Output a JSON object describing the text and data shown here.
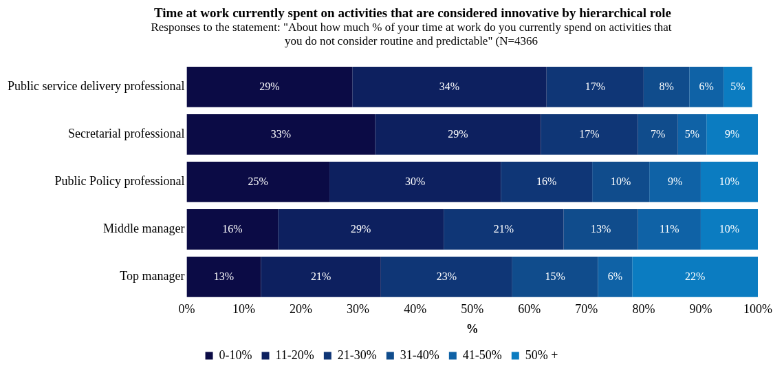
{
  "chart_data": {
    "type": "bar",
    "orientation": "horizontal",
    "stacked": true,
    "title": "Time at work currently spent on activities that are considered innovative by hierarchical role",
    "subtitle": "Responses to the statement: \"About how much % of your time at work do you currently spend on activities that you do not consider routine and predictable\" (N=4366",
    "xlabel": "%",
    "categories": [
      "Public service delivery professional",
      "Secretarial professional",
      "Public Policy professional",
      "Middle manager",
      "Top manager"
    ],
    "series": [
      {
        "name": "0-10%",
        "color": "#0b0b45",
        "values": [
          29,
          33,
          25,
          16,
          13
        ],
        "value_labels": [
          "29%",
          "33%",
          "25%",
          "16%",
          "13%"
        ]
      },
      {
        "name": "11-20%",
        "color": "#0d205f",
        "values": [
          34,
          29,
          30,
          29,
          21
        ],
        "value_labels": [
          "34%",
          "29%",
          "30%",
          "29%",
          "21%"
        ]
      },
      {
        "name": "21-30%",
        "color": "#0f3676",
        "values": [
          17,
          17,
          16,
          21,
          23
        ],
        "value_labels": [
          "17%",
          "17%",
          "16%",
          "21%",
          "23%"
        ]
      },
      {
        "name": "31-40%",
        "color": "#104c8c",
        "values": [
          8,
          7,
          10,
          13,
          15
        ],
        "value_labels": [
          "8%",
          "7%",
          "10%",
          "13%",
          "15%"
        ]
      },
      {
        "name": "41-50%",
        "color": "#0f62a6",
        "values": [
          6,
          5,
          9,
          11,
          6
        ],
        "value_labels": [
          "6%",
          "5%",
          "9%",
          "11%",
          "6%"
        ]
      },
      {
        "name": "50% +",
        "color": "#0b7cc1",
        "values": [
          5,
          9,
          10,
          10,
          22
        ],
        "value_labels": [
          "5%",
          "9%",
          "10%",
          "10%",
          "22%"
        ]
      }
    ],
    "xlim": [
      0,
      100
    ],
    "xticks": [
      {
        "value": 0,
        "label": "0%"
      },
      {
        "value": 10,
        "label": "10%"
      },
      {
        "value": 20,
        "label": "20%"
      },
      {
        "value": 30,
        "label": "30%"
      },
      {
        "value": 40,
        "label": "40%"
      },
      {
        "value": 50,
        "label": "50%"
      },
      {
        "value": 60,
        "label": "60%"
      },
      {
        "value": 70,
        "label": "70%"
      },
      {
        "value": 80,
        "label": "80%"
      },
      {
        "value": 90,
        "label": "90%"
      },
      {
        "value": 100,
        "label": "100%"
      }
    ],
    "grid": false,
    "legend": "bottom"
  }
}
